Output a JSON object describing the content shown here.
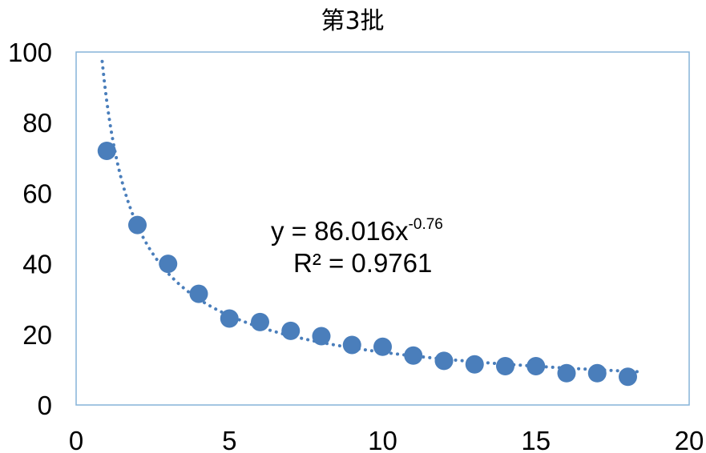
{
  "chart_data": {
    "type": "scatter",
    "title": "第3批",
    "xlabel": "",
    "ylabel": "",
    "xlim": [
      0,
      20
    ],
    "ylim": [
      0,
      100
    ],
    "x_ticks": [
      0,
      5,
      10,
      15,
      20
    ],
    "y_ticks": [
      0,
      20,
      40,
      60,
      80,
      100
    ],
    "grid": false,
    "legend": "none",
    "series": [
      {
        "x": [
          1,
          2,
          3,
          4,
          5,
          6,
          7,
          8,
          9,
          10,
          11,
          12,
          13,
          14,
          15,
          16,
          17,
          18
        ],
        "y": [
          72,
          51,
          40,
          31.5,
          24.5,
          23.5,
          21,
          19.5,
          17,
          16.5,
          14,
          12.5,
          11.5,
          11,
          11,
          9,
          9,
          8
        ]
      }
    ],
    "trendline": {
      "type": "power",
      "coefficient": 86.016,
      "exponent": -0.76,
      "equation_main": "y = 86.016x",
      "equation_exponent": "-0.76",
      "r_squared_label": "R² = 0.9761"
    },
    "colors": {
      "marker": "#4a7ebb",
      "trendline": "#4a7ebb",
      "plot_border": "#86b4d8"
    }
  }
}
